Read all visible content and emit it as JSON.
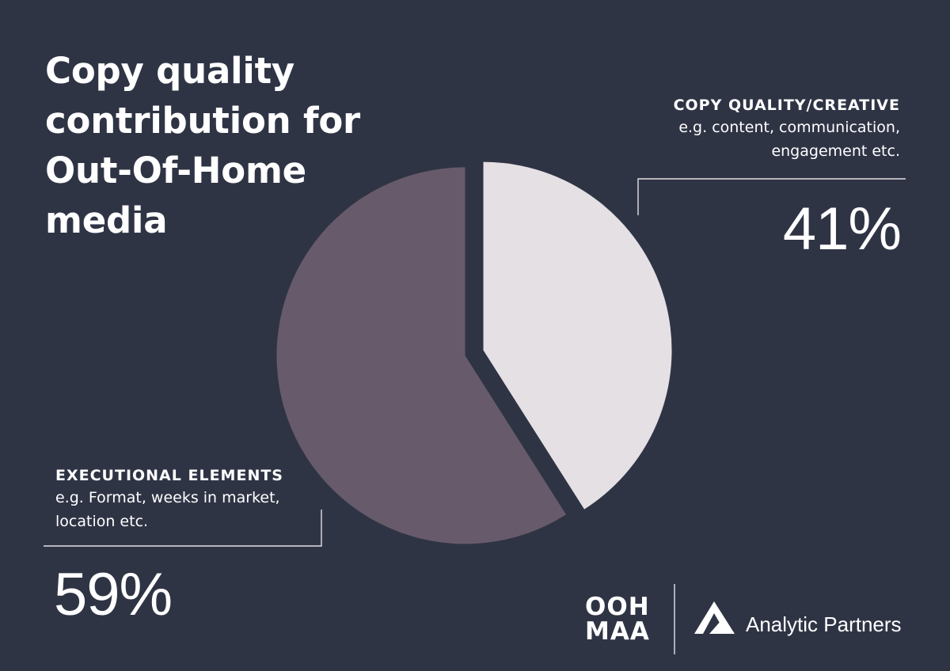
{
  "colors": {
    "background": "#2f3445",
    "text": "#ffffff",
    "slice_copy": "#e4e0e4",
    "slice_exec": "#675b6b",
    "rule": "#e4e0e4"
  },
  "title_lines": [
    "Copy quality",
    "contribution for",
    "Out-Of-Home",
    "media"
  ],
  "labels": {
    "copy": {
      "heading": "COPY QUALITY/CREATIVE",
      "desc_lines": [
        "e.g. content, communication,",
        "engagement etc."
      ],
      "pct_text": "41%"
    },
    "exec": {
      "heading": "EXECUTIONAL ELEMENTS",
      "desc_lines": [
        "e.g. Format, weeks in market,",
        "location etc."
      ],
      "pct_text": "59%"
    }
  },
  "chart_data": {
    "type": "pie",
    "title": "Copy quality contribution for Out-Of-Home media",
    "slices": [
      {
        "name": "COPY QUALITY/CREATIVE",
        "value": 41,
        "color": "#e4e0e4"
      },
      {
        "name": "EXECUTIONAL ELEMENTS",
        "value": 59,
        "color": "#675b6b"
      }
    ],
    "start": "12 o'clock, clockwise",
    "exploded": true
  },
  "logos": {
    "oohmaa_lines": [
      "OOH",
      "MAA"
    ],
    "analytic_partners": "Analytic Partners",
    "analytic_partners_icon": "analytic-partners-mountain-icon"
  }
}
